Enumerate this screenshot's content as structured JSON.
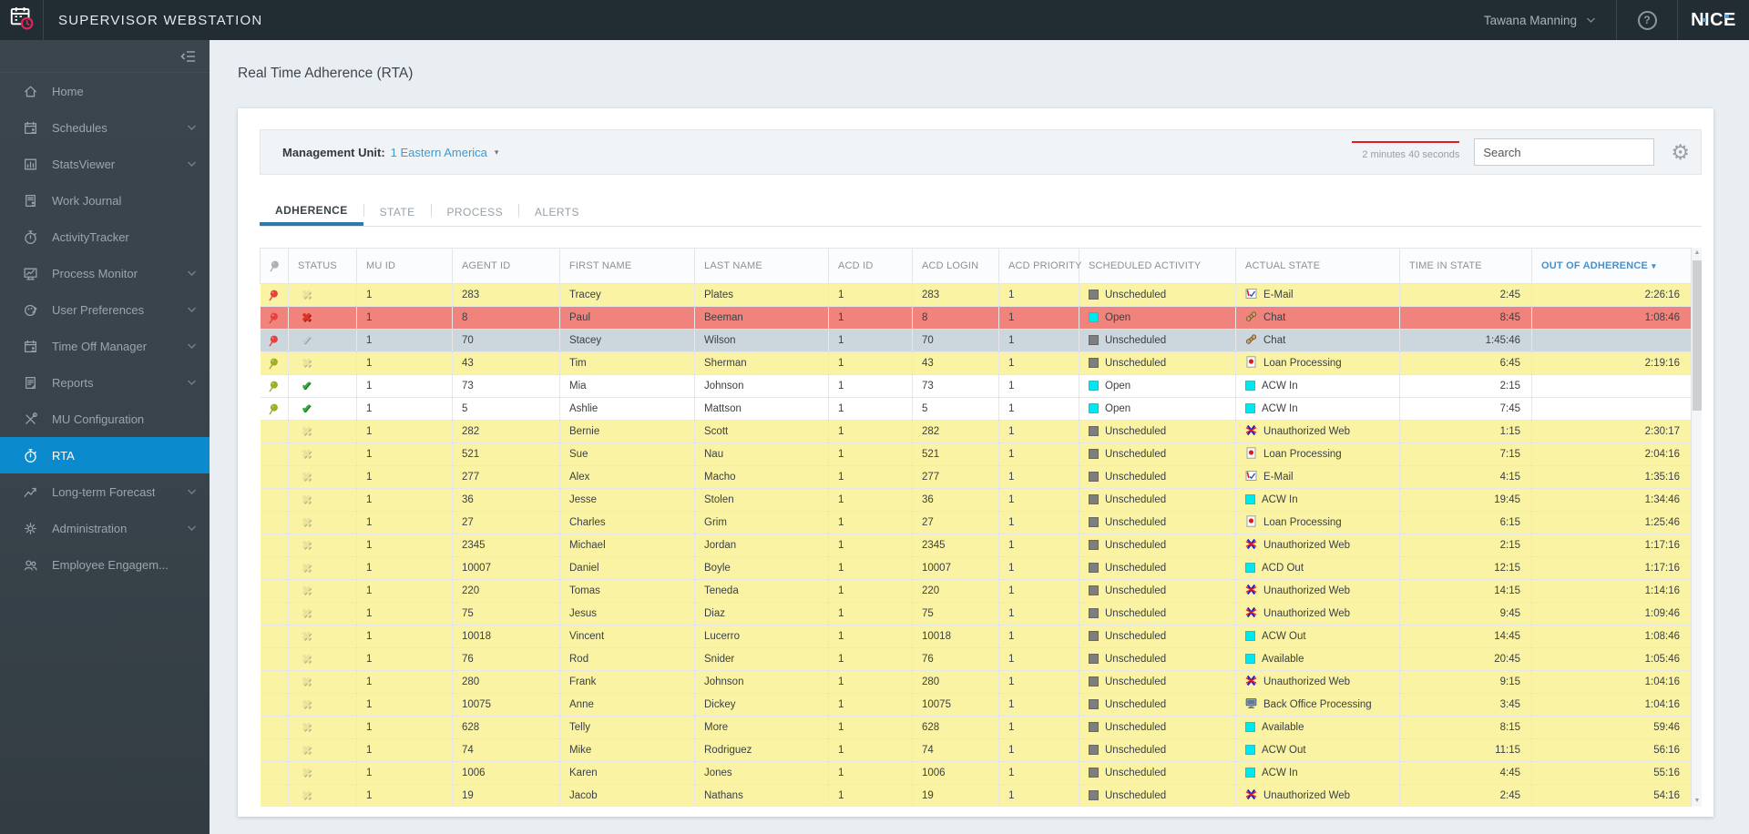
{
  "header": {
    "app_title": "SUPERVISOR WEBSTATION",
    "user_name": "Tawana Manning",
    "help_label": "?",
    "logo_text": "NICE"
  },
  "sidebar": {
    "items": [
      {
        "label": "Home",
        "icon": "home",
        "has_submenu": false,
        "active": false
      },
      {
        "label": "Schedules",
        "icon": "calendar-person",
        "has_submenu": true,
        "active": false
      },
      {
        "label": "StatsViewer",
        "icon": "bar-chart",
        "has_submenu": true,
        "active": false
      },
      {
        "label": "Work Journal",
        "icon": "journal-person",
        "has_submenu": false,
        "active": false
      },
      {
        "label": "ActivityTracker",
        "icon": "stopwatch",
        "has_submenu": false,
        "active": false
      },
      {
        "label": "Process Monitor",
        "icon": "monitor-chart",
        "has_submenu": true,
        "active": false
      },
      {
        "label": "User Preferences",
        "icon": "palette",
        "has_submenu": true,
        "active": false
      },
      {
        "label": "Time Off Manager",
        "icon": "calendar-person",
        "has_submenu": true,
        "active": false
      },
      {
        "label": "Reports",
        "icon": "doc-report",
        "has_submenu": true,
        "active": false
      },
      {
        "label": "MU Configuration",
        "icon": "tools",
        "has_submenu": false,
        "active": false
      },
      {
        "label": "RTA",
        "icon": "stopwatch",
        "has_submenu": false,
        "active": true
      },
      {
        "label": "Long-term Forecast",
        "icon": "trend-arrow",
        "has_submenu": true,
        "active": false
      },
      {
        "label": "Administration",
        "icon": "gear",
        "has_submenu": true,
        "active": false
      },
      {
        "label": "Employee Engagem...",
        "icon": "people",
        "has_submenu": false,
        "active": false
      }
    ]
  },
  "page": {
    "title": "Real Time Adherence (RTA)"
  },
  "toolbar": {
    "management_unit_label": "Management Unit:",
    "management_unit_value": "1 Eastern America",
    "refresh_timer_text": "2 minutes 40 seconds",
    "search_placeholder": "Search"
  },
  "tabs": [
    {
      "label": "ADHERENCE",
      "active": true
    },
    {
      "label": "STATE",
      "active": false
    },
    {
      "label": "PROCESS",
      "active": false
    },
    {
      "label": "ALERTS",
      "active": false
    }
  ],
  "table": {
    "columns": [
      {
        "key": "pin",
        "label": "",
        "icon": "pin"
      },
      {
        "key": "status",
        "label": "STATUS"
      },
      {
        "key": "mu_id",
        "label": "MU ID"
      },
      {
        "key": "agent_id",
        "label": "AGENT ID"
      },
      {
        "key": "first_name",
        "label": "FIRST NAME"
      },
      {
        "key": "last_name",
        "label": "LAST NAME"
      },
      {
        "key": "acd_id",
        "label": "ACD ID"
      },
      {
        "key": "acd_login",
        "label": "ACD LOGIN"
      },
      {
        "key": "acd_priority",
        "label": "ACD PRIORITY"
      },
      {
        "key": "scheduled_activity",
        "label": "SCHEDULED ACTIVITY"
      },
      {
        "key": "actual_state",
        "label": "ACTUAL STATE"
      },
      {
        "key": "time_in_state",
        "label": "TIME IN STATE",
        "align": "right"
      },
      {
        "key": "out_of_adherence",
        "label": "OUT OF ADHERENCE",
        "align": "right",
        "sorted": "desc"
      }
    ],
    "rows": [
      {
        "pin": "red",
        "status": "out-x",
        "bg": "yellow",
        "mu_id": "1",
        "agent_id": "283",
        "first_name": "Tracey",
        "last_name": "Plates",
        "acd_id": "1",
        "acd_login": "283",
        "acd_priority": "1",
        "scheduled_activity": "Unscheduled",
        "scheduled_icon": "gray-square",
        "actual_state": "E-Mail",
        "actual_icon": "email",
        "time_in_state": "2:45",
        "out_of_adherence": "2:26:16"
      },
      {
        "pin": "red",
        "status": "red-x",
        "bg": "red",
        "mu_id": "1",
        "agent_id": "8",
        "first_name": "Paul",
        "last_name": "Beeman",
        "acd_id": "1",
        "acd_login": "8",
        "acd_priority": "1",
        "scheduled_activity": "Open",
        "scheduled_icon": "cyan-square",
        "actual_state": "Chat",
        "actual_icon": "chat",
        "time_in_state": "8:45",
        "out_of_adherence": "1:08:46"
      },
      {
        "pin": "red",
        "status": "gray-check",
        "bg": "gray",
        "mu_id": "1",
        "agent_id": "70",
        "first_name": "Stacey",
        "last_name": "Wilson",
        "acd_id": "1",
        "acd_login": "70",
        "acd_priority": "1",
        "scheduled_activity": "Unscheduled",
        "scheduled_icon": "gray-square",
        "actual_state": "Chat",
        "actual_icon": "chat",
        "time_in_state": "1:45:46",
        "out_of_adherence": ""
      },
      {
        "pin": "olive",
        "status": "out-x",
        "bg": "yellow",
        "mu_id": "1",
        "agent_id": "43",
        "first_name": "Tim",
        "last_name": "Sherman",
        "acd_id": "1",
        "acd_login": "43",
        "acd_priority": "1",
        "scheduled_activity": "Unscheduled",
        "scheduled_icon": "gray-square",
        "actual_state": "Loan Processing",
        "actual_icon": "loan",
        "time_in_state": "6:45",
        "out_of_adherence": "2:19:16"
      },
      {
        "pin": "olive",
        "status": "green-check",
        "bg": "white",
        "mu_id": "1",
        "agent_id": "73",
        "first_name": "Mia",
        "last_name": "Johnson",
        "acd_id": "1",
        "acd_login": "73",
        "acd_priority": "1",
        "scheduled_activity": "Open",
        "scheduled_icon": "cyan-square",
        "actual_state": "ACW In",
        "actual_icon": "cyan-square",
        "time_in_state": "2:15",
        "out_of_adherence": ""
      },
      {
        "pin": "olive",
        "status": "green-check",
        "bg": "white",
        "mu_id": "1",
        "agent_id": "5",
        "first_name": "Ashlie",
        "last_name": "Mattson",
        "acd_id": "1",
        "acd_login": "5",
        "acd_priority": "1",
        "scheduled_activity": "Open",
        "scheduled_icon": "cyan-square",
        "actual_state": "ACW In",
        "actual_icon": "cyan-square",
        "time_in_state": "7:45",
        "out_of_adherence": ""
      },
      {
        "pin": null,
        "status": "out-x",
        "bg": "yellow",
        "mu_id": "1",
        "agent_id": "282",
        "first_name": "Bernie",
        "last_name": "Scott",
        "acd_id": "1",
        "acd_login": "282",
        "acd_priority": "1",
        "scheduled_activity": "Unscheduled",
        "scheduled_icon": "gray-square",
        "actual_state": "Unauthorized Web",
        "actual_icon": "unauth-web",
        "time_in_state": "1:15",
        "out_of_adherence": "2:30:17"
      },
      {
        "pin": null,
        "status": "out-x",
        "bg": "yellow",
        "mu_id": "1",
        "agent_id": "521",
        "first_name": "Sue",
        "last_name": "Nau",
        "acd_id": "1",
        "acd_login": "521",
        "acd_priority": "1",
        "scheduled_activity": "Unscheduled",
        "scheduled_icon": "gray-square",
        "actual_state": "Loan Processing",
        "actual_icon": "loan",
        "time_in_state": "7:15",
        "out_of_adherence": "2:04:16"
      },
      {
        "pin": null,
        "status": "out-x",
        "bg": "yellow",
        "mu_id": "1",
        "agent_id": "277",
        "first_name": "Alex",
        "last_name": "Macho",
        "acd_id": "1",
        "acd_login": "277",
        "acd_priority": "1",
        "scheduled_activity": "Unscheduled",
        "scheduled_icon": "gray-square",
        "actual_state": "E-Mail",
        "actual_icon": "email",
        "time_in_state": "4:15",
        "out_of_adherence": "1:35:16"
      },
      {
        "pin": null,
        "status": "out-x",
        "bg": "yellow",
        "mu_id": "1",
        "agent_id": "36",
        "first_name": "Jesse",
        "last_name": "Stolen",
        "acd_id": "1",
        "acd_login": "36",
        "acd_priority": "1",
        "scheduled_activity": "Unscheduled",
        "scheduled_icon": "gray-square",
        "actual_state": "ACW In",
        "actual_icon": "cyan-square",
        "time_in_state": "19:45",
        "out_of_adherence": "1:34:46"
      },
      {
        "pin": null,
        "status": "out-x",
        "bg": "yellow",
        "mu_id": "1",
        "agent_id": "27",
        "first_name": "Charles",
        "last_name": "Grim",
        "acd_id": "1",
        "acd_login": "27",
        "acd_priority": "1",
        "scheduled_activity": "Unscheduled",
        "scheduled_icon": "gray-square",
        "actual_state": "Loan Processing",
        "actual_icon": "loan",
        "time_in_state": "6:15",
        "out_of_adherence": "1:25:46"
      },
      {
        "pin": null,
        "status": "out-x",
        "bg": "yellow",
        "mu_id": "1",
        "agent_id": "2345",
        "first_name": "Michael",
        "last_name": "Jordan",
        "acd_id": "1",
        "acd_login": "2345",
        "acd_priority": "1",
        "scheduled_activity": "Unscheduled",
        "scheduled_icon": "gray-square",
        "actual_state": "Unauthorized Web",
        "actual_icon": "unauth-web",
        "time_in_state": "2:15",
        "out_of_adherence": "1:17:16"
      },
      {
        "pin": null,
        "status": "out-x",
        "bg": "yellow",
        "mu_id": "1",
        "agent_id": "10007",
        "first_name": "Daniel",
        "last_name": "Boyle",
        "acd_id": "1",
        "acd_login": "10007",
        "acd_priority": "1",
        "scheduled_activity": "Unscheduled",
        "scheduled_icon": "gray-square",
        "actual_state": "ACD Out",
        "actual_icon": "cyan-square",
        "time_in_state": "12:15",
        "out_of_adherence": "1:17:16"
      },
      {
        "pin": null,
        "status": "out-x",
        "bg": "yellow",
        "mu_id": "1",
        "agent_id": "220",
        "first_name": "Tomas",
        "last_name": "Teneda",
        "acd_id": "1",
        "acd_login": "220",
        "acd_priority": "1",
        "scheduled_activity": "Unscheduled",
        "scheduled_icon": "gray-square",
        "actual_state": "Unauthorized Web",
        "actual_icon": "unauth-web",
        "time_in_state": "14:15",
        "out_of_adherence": "1:14:16"
      },
      {
        "pin": null,
        "status": "out-x",
        "bg": "yellow",
        "mu_id": "1",
        "agent_id": "75",
        "first_name": "Jesus",
        "last_name": "Diaz",
        "acd_id": "1",
        "acd_login": "75",
        "acd_priority": "1",
        "scheduled_activity": "Unscheduled",
        "scheduled_icon": "gray-square",
        "actual_state": "Unauthorized Web",
        "actual_icon": "unauth-web",
        "time_in_state": "9:45",
        "out_of_adherence": "1:09:46"
      },
      {
        "pin": null,
        "status": "out-x",
        "bg": "yellow",
        "mu_id": "1",
        "agent_id": "10018",
        "first_name": "Vincent",
        "last_name": "Lucerro",
        "acd_id": "1",
        "acd_login": "10018",
        "acd_priority": "1",
        "scheduled_activity": "Unscheduled",
        "scheduled_icon": "gray-square",
        "actual_state": "ACW Out",
        "actual_icon": "cyan-square",
        "time_in_state": "14:45",
        "out_of_adherence": "1:08:46"
      },
      {
        "pin": null,
        "status": "out-x",
        "bg": "yellow",
        "mu_id": "1",
        "agent_id": "76",
        "first_name": "Rod",
        "last_name": "Snider",
        "acd_id": "1",
        "acd_login": "76",
        "acd_priority": "1",
        "scheduled_activity": "Unscheduled",
        "scheduled_icon": "gray-square",
        "actual_state": "Available",
        "actual_icon": "cyan-square",
        "time_in_state": "20:45",
        "out_of_adherence": "1:05:46"
      },
      {
        "pin": null,
        "status": "out-x",
        "bg": "yellow",
        "mu_id": "1",
        "agent_id": "280",
        "first_name": "Frank",
        "last_name": "Johnson",
        "acd_id": "1",
        "acd_login": "280",
        "acd_priority": "1",
        "scheduled_activity": "Unscheduled",
        "scheduled_icon": "gray-square",
        "actual_state": "Unauthorized Web",
        "actual_icon": "unauth-web",
        "time_in_state": "9:15",
        "out_of_adherence": "1:04:16"
      },
      {
        "pin": null,
        "status": "out-x",
        "bg": "yellow",
        "mu_id": "1",
        "agent_id": "10075",
        "first_name": "Anne",
        "last_name": "Dickey",
        "acd_id": "1",
        "acd_login": "10075",
        "acd_priority": "1",
        "scheduled_activity": "Unscheduled",
        "scheduled_icon": "gray-square",
        "actual_state": "Back Office Processing",
        "actual_icon": "back-office",
        "time_in_state": "3:45",
        "out_of_adherence": "1:04:16"
      },
      {
        "pin": null,
        "status": "out-x",
        "bg": "yellow",
        "mu_id": "1",
        "agent_id": "628",
        "first_name": "Telly",
        "last_name": "More",
        "acd_id": "1",
        "acd_login": "628",
        "acd_priority": "1",
        "scheduled_activity": "Unscheduled",
        "scheduled_icon": "gray-square",
        "actual_state": "Available",
        "actual_icon": "cyan-square",
        "time_in_state": "8:15",
        "out_of_adherence": "59:46"
      },
      {
        "pin": null,
        "status": "out-x",
        "bg": "yellow",
        "mu_id": "1",
        "agent_id": "74",
        "first_name": "Mike",
        "last_name": "Rodriguez",
        "acd_id": "1",
        "acd_login": "74",
        "acd_priority": "1",
        "scheduled_activity": "Unscheduled",
        "scheduled_icon": "gray-square",
        "actual_state": "ACW Out",
        "actual_icon": "cyan-square",
        "time_in_state": "11:15",
        "out_of_adherence": "56:16"
      },
      {
        "pin": null,
        "status": "out-x",
        "bg": "yellow",
        "mu_id": "1",
        "agent_id": "1006",
        "first_name": "Karen",
        "last_name": "Jones",
        "acd_id": "1",
        "acd_login": "1006",
        "acd_priority": "1",
        "scheduled_activity": "Unscheduled",
        "scheduled_icon": "gray-square",
        "actual_state": "ACW In",
        "actual_icon": "cyan-square",
        "time_in_state": "4:45",
        "out_of_adherence": "55:16"
      },
      {
        "pin": null,
        "status": "out-x",
        "bg": "yellow",
        "mu_id": "1",
        "agent_id": "19",
        "first_name": "Jacob",
        "last_name": "Nathans",
        "acd_id": "1",
        "acd_login": "19",
        "acd_priority": "1",
        "scheduled_activity": "Unscheduled",
        "scheduled_icon": "gray-square",
        "actual_state": "Unauthorized Web",
        "actual_icon": "unauth-web",
        "time_in_state": "2:45",
        "out_of_adherence": "54:16"
      }
    ]
  },
  "colors": {
    "accent_blue": "#0b8bce",
    "tab_underline": "#2c79ae",
    "row_yellow": "#faf3a3",
    "row_red": "#f0837c",
    "row_gray": "#ccd6dd",
    "pin_red": "#e8403d",
    "pin_olive": "#9fae27",
    "timer_red": "#e31b23",
    "cyan_state": "#00e7ef",
    "gray_state": "#7e7e7e",
    "topbar_bg": "#222d33",
    "sidebar_bg": "#3b454d"
  }
}
